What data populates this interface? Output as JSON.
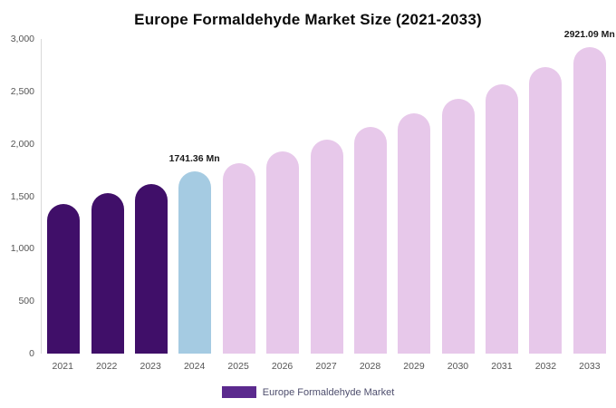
{
  "chart_data": {
    "type": "bar",
    "title": "Europe Formaldehyde Market Size (2021-2033)",
    "legend": "Europe Formaldehyde Market",
    "xlabel": "",
    "ylabel": "",
    "ylim": [
      0,
      3000
    ],
    "y_ticks": [
      0,
      500,
      1000,
      1500,
      2000,
      2500,
      3000
    ],
    "y_tick_labels": [
      "0",
      "500",
      "1,000",
      "1,500",
      "2,000",
      "2,500",
      "3,000"
    ],
    "categories": [
      "2021",
      "2022",
      "2023",
      "2024",
      "2025",
      "2026",
      "2027",
      "2028",
      "2029",
      "2030",
      "2031",
      "2032",
      "2033"
    ],
    "values": [
      1430,
      1530,
      1620,
      1741.36,
      1820,
      1930,
      2040,
      2160,
      2290,
      2430,
      2570,
      2730,
      2921.09
    ],
    "units": "Mn",
    "annotations": [
      {
        "index": 3,
        "text": "1741.36 Mn"
      },
      {
        "index": 12,
        "text": "2921.09 Mn"
      }
    ],
    "bar_colors": {
      "historical": "#400f69",
      "highlight": "#a5cbe2",
      "forecast": "#e7c8ea"
    },
    "bar_color_keys": [
      "historical",
      "historical",
      "historical",
      "highlight",
      "forecast",
      "forecast",
      "forecast",
      "forecast",
      "forecast",
      "forecast",
      "forecast",
      "forecast",
      "forecast"
    ],
    "legend_color": "#5b2a8e",
    "gridlines": false,
    "legend_position": "bottom"
  }
}
